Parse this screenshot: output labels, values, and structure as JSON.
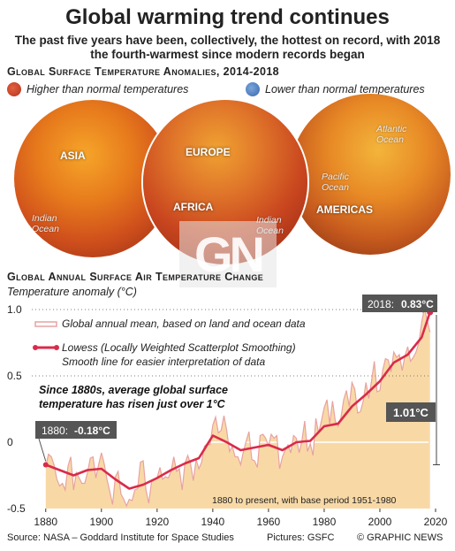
{
  "header": {
    "title": "Global warming trend continues",
    "subtitle": "The past five years have been, collectively, the hottest on record, with 2018 the fourth-warmest since modern records began"
  },
  "maps": {
    "section_title": "Global Surface Temperature Anomalies, 2014-2018",
    "legend": [
      {
        "label": "Higher than normal temperatures",
        "color": "#c9402b"
      },
      {
        "label": "Lower than normal temperatures",
        "color": "#4a7fc1"
      }
    ],
    "globes": [
      {
        "name": "asia",
        "labels": [
          "ASIA"
        ],
        "ocean": "Indian Ocean"
      },
      {
        "name": "europe-africa",
        "labels": [
          "EUROPE",
          "AFRICA"
        ],
        "ocean": "Indian Ocean"
      },
      {
        "name": "americas",
        "labels": [
          "AMERICAS"
        ],
        "ocean_1": "Pacific Ocean",
        "ocean_2": "Atlantic Ocean"
      }
    ]
  },
  "watermark": "GN",
  "chart_section_title": "Global Annual Surface Air Temperature Change",
  "chart_data": {
    "type": "line",
    "ylabel": "Temperature anomaly (°C)",
    "xlim": [
      1875,
      2020
    ],
    "ylim": [
      -0.5,
      1.0
    ],
    "x_ticks": [
      1880,
      1900,
      1920,
      1940,
      1960,
      1980,
      2000,
      2020
    ],
    "y_ticks": [
      "1.0",
      "0.5",
      "0",
      "-0.5"
    ],
    "colors": {
      "annual": "#e8a2a2",
      "lowess": "#d92b4a",
      "fill": "#f8d9a6"
    },
    "series": [
      {
        "name": "Global annual mean, based on land and ocean data",
        "x": [
          1880,
          1881,
          1882,
          1883,
          1884,
          1885,
          1886,
          1887,
          1888,
          1889,
          1890,
          1891,
          1892,
          1893,
          1894,
          1895,
          1896,
          1897,
          1898,
          1899,
          1900,
          1901,
          1902,
          1903,
          1904,
          1905,
          1906,
          1907,
          1908,
          1909,
          1910,
          1911,
          1912,
          1913,
          1914,
          1915,
          1916,
          1917,
          1918,
          1919,
          1920,
          1921,
          1922,
          1923,
          1924,
          1925,
          1926,
          1927,
          1928,
          1929,
          1930,
          1931,
          1932,
          1933,
          1934,
          1935,
          1936,
          1937,
          1938,
          1939,
          1940,
          1941,
          1942,
          1943,
          1944,
          1945,
          1946,
          1947,
          1948,
          1949,
          1950,
          1951,
          1952,
          1953,
          1954,
          1955,
          1956,
          1957,
          1958,
          1959,
          1960,
          1961,
          1962,
          1963,
          1964,
          1965,
          1966,
          1967,
          1968,
          1969,
          1970,
          1971,
          1972,
          1973,
          1974,
          1975,
          1976,
          1977,
          1978,
          1979,
          1980,
          1981,
          1982,
          1983,
          1984,
          1985,
          1986,
          1987,
          1988,
          1989,
          1990,
          1991,
          1992,
          1993,
          1994,
          1995,
          1996,
          1997,
          1998,
          1999,
          2000,
          2001,
          2002,
          2003,
          2004,
          2005,
          2006,
          2007,
          2008,
          2009,
          2010,
          2011,
          2012,
          2013,
          2014,
          2015,
          2016,
          2017,
          2018
        ],
        "values": [
          -0.18,
          -0.09,
          -0.11,
          -0.17,
          -0.28,
          -0.33,
          -0.31,
          -0.36,
          -0.18,
          -0.11,
          -0.36,
          -0.23,
          -0.27,
          -0.31,
          -0.31,
          -0.23,
          -0.12,
          -0.11,
          -0.27,
          -0.17,
          -0.08,
          -0.16,
          -0.28,
          -0.37,
          -0.47,
          -0.26,
          -0.22,
          -0.39,
          -0.43,
          -0.48,
          -0.43,
          -0.44,
          -0.36,
          -0.35,
          -0.15,
          -0.14,
          -0.36,
          -0.46,
          -0.3,
          -0.28,
          -0.27,
          -0.19,
          -0.28,
          -0.26,
          -0.27,
          -0.22,
          -0.11,
          -0.22,
          -0.2,
          -0.36,
          -0.16,
          -0.1,
          -0.16,
          -0.29,
          -0.13,
          -0.2,
          -0.15,
          -0.03,
          -0.01,
          -0.02,
          0.13,
          0.19,
          0.07,
          0.09,
          0.2,
          0.09,
          -0.07,
          -0.03,
          -0.11,
          -0.11,
          -0.17,
          -0.07,
          0.01,
          0.08,
          -0.13,
          -0.14,
          -0.19,
          0.05,
          0.06,
          0.03,
          -0.03,
          0.06,
          0.03,
          0.05,
          -0.2,
          -0.11,
          -0.06,
          -0.02,
          -0.08,
          0.05,
          0.03,
          -0.08,
          0.01,
          0.16,
          -0.07,
          -0.01,
          -0.1,
          0.18,
          0.07,
          0.16,
          0.26,
          0.32,
          0.14,
          0.31,
          0.16,
          0.12,
          0.18,
          0.32,
          0.39,
          0.27,
          0.45,
          0.4,
          0.22,
          0.23,
          0.31,
          0.45,
          0.33,
          0.46,
          0.61,
          0.38,
          0.39,
          0.54,
          0.63,
          0.62,
          0.53,
          0.68,
          0.64,
          0.66,
          0.54,
          0.65,
          0.72,
          0.61,
          0.64,
          0.68,
          0.75,
          0.9,
          1.01,
          0.92,
          0.83
        ]
      },
      {
        "name": "Lowess (Locally Weighted Scatterplot Smoothing)",
        "description": "Smooth line for easier interpretation of data",
        "x": [
          1880,
          1885,
          1890,
          1895,
          1900,
          1905,
          1910,
          1915,
          1920,
          1925,
          1930,
          1935,
          1940,
          1945,
          1950,
          1955,
          1960,
          1965,
          1970,
          1975,
          1980,
          1985,
          1990,
          1995,
          2000,
          2005,
          2010,
          2015,
          2018
        ],
        "values": [
          -0.17,
          -0.21,
          -0.25,
          -0.21,
          -0.2,
          -0.28,
          -0.35,
          -0.32,
          -0.27,
          -0.21,
          -0.16,
          -0.12,
          0.05,
          0.0,
          -0.06,
          -0.04,
          -0.02,
          -0.06,
          0.0,
          0.01,
          0.12,
          0.14,
          0.27,
          0.36,
          0.46,
          0.6,
          0.66,
          0.79,
          0.98
        ]
      }
    ],
    "annotations": {
      "start_year": "1880",
      "start_value": "-0.18°C",
      "end_year": "2018",
      "end_value": "0.83°C",
      "rise": "1.01°C",
      "note": "Since 1880s, average global surface temperature has risen just over 1°C",
      "base_period": "1880 to present, with base period 1951-1980"
    }
  },
  "footer": {
    "source": "Source: NASA – Goddard Institute for Space Studies",
    "pictures": "Pictures: GSFC",
    "copyright": "© GRAPHIC NEWS"
  }
}
